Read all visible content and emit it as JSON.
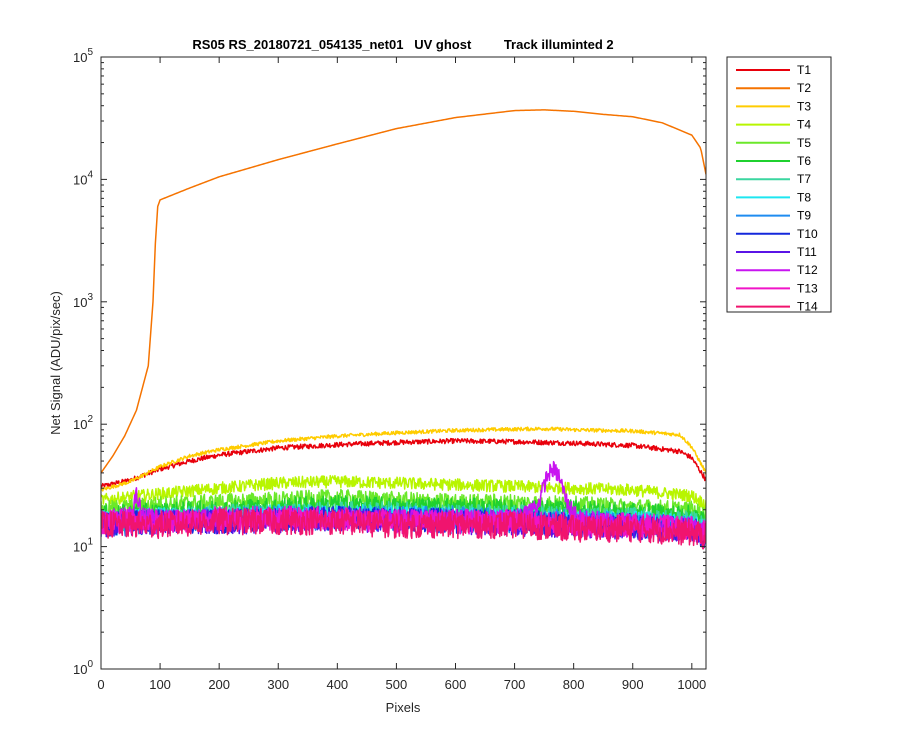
{
  "chart_data": {
    "type": "line",
    "title": "RS05 RS_20180721_054135_net01   UV ghost         Track illuminted 2",
    "xlabel": "Pixels",
    "ylabel": "Net Signal (ADU/pix/sec)",
    "xlim": [
      0,
      1024
    ],
    "ylim": [
      1,
      100000
    ],
    "yscale": "log",
    "grid": false,
    "legend_position": "outside-right",
    "x_ticks": [
      "0",
      "100",
      "200",
      "300",
      "400",
      "500",
      "600",
      "700",
      "800",
      "900",
      "1000"
    ],
    "y_ticks": [
      {
        "base": "10",
        "exp": "0"
      },
      {
        "base": "10",
        "exp": "1"
      },
      {
        "base": "10",
        "exp": "2"
      },
      {
        "base": "10",
        "exp": "3"
      },
      {
        "base": "10",
        "exp": "4"
      },
      {
        "base": "10",
        "exp": "5"
      }
    ],
    "series": [
      {
        "name": "T1",
        "color": "#e8000b",
        "x": [
          0,
          50,
          100,
          150,
          200,
          300,
          400,
          500,
          600,
          700,
          800,
          900,
          980,
          1000,
          1024
        ],
        "y": [
          31,
          35,
          43,
          50,
          56,
          64,
          68,
          71,
          73,
          72,
          70,
          67,
          60,
          53,
          35
        ],
        "noise": 0.02
      },
      {
        "name": "T2",
        "color": "#f57300",
        "x": [
          0,
          20,
          40,
          60,
          80,
          88,
          92,
          96,
          100,
          150,
          200,
          300,
          400,
          500,
          600,
          700,
          750,
          800,
          850,
          900,
          950,
          1000,
          1015,
          1024
        ],
        "y": [
          40,
          55,
          80,
          130,
          300,
          1000,
          3000,
          6000,
          6800,
          8500,
          10500,
          14500,
          19500,
          26000,
          32000,
          36500,
          37000,
          36000,
          34000,
          32500,
          29000,
          23000,
          18000,
          11000
        ],
        "noise": 0
      },
      {
        "name": "T3",
        "color": "#ffcc00",
        "x": [
          0,
          50,
          100,
          150,
          200,
          300,
          400,
          500,
          600,
          700,
          750,
          800,
          900,
          980,
          1000,
          1024
        ],
        "y": [
          29,
          34,
          45,
          55,
          62,
          73,
          80,
          85,
          89,
          91,
          92,
          90,
          88,
          82,
          65,
          40
        ],
        "noise": 0.015
      },
      {
        "name": "T4",
        "color": "#b8f500",
        "x": [
          0,
          100,
          200,
          300,
          400,
          500,
          600,
          700,
          800,
          900,
          1000,
          1024
        ],
        "y": [
          24,
          27,
          30,
          33,
          34,
          33,
          32,
          31,
          30,
          29,
          26,
          22
        ],
        "noise": 0.05
      },
      {
        "name": "T5",
        "color": "#6be82a",
        "x": [
          0,
          100,
          200,
          300,
          400,
          500,
          600,
          700,
          800,
          900,
          1000,
          1024
        ],
        "y": [
          20,
          22,
          23,
          24,
          25,
          24,
          23,
          23,
          22,
          21,
          20,
          18
        ],
        "noise": 0.07
      },
      {
        "name": "T6",
        "color": "#1fd12f",
        "x": [
          0,
          100,
          200,
          300,
          400,
          500,
          600,
          700,
          800,
          900,
          1000,
          1024
        ],
        "y": [
          18,
          19,
          20,
          21,
          22,
          21,
          21,
          20,
          20,
          19,
          18,
          16
        ],
        "noise": 0.08
      },
      {
        "name": "T7",
        "color": "#3ad6a0",
        "x": [
          0,
          100,
          200,
          300,
          400,
          500,
          600,
          700,
          800,
          900,
          1000,
          1024
        ],
        "y": [
          16,
          17,
          18,
          18,
          19,
          19,
          18,
          18,
          17,
          17,
          16,
          14
        ],
        "noise": 0.09
      },
      {
        "name": "T8",
        "color": "#1ee6f0",
        "x": [
          0,
          100,
          200,
          300,
          400,
          500,
          600,
          700,
          800,
          900,
          1000,
          1024
        ],
        "y": [
          16,
          17,
          17,
          18,
          18,
          18,
          17,
          17,
          16,
          16,
          15,
          13
        ],
        "noise": 0.09
      },
      {
        "name": "T9",
        "color": "#1f8cf0",
        "x": [
          0,
          100,
          200,
          300,
          400,
          500,
          600,
          700,
          800,
          900,
          1000,
          1024
        ],
        "y": [
          15,
          16,
          17,
          17,
          17,
          17,
          17,
          16,
          16,
          15,
          14,
          12
        ],
        "noise": 0.1
      },
      {
        "name": "T10",
        "color": "#1428dc",
        "x": [
          0,
          100,
          200,
          300,
          400,
          500,
          600,
          700,
          800,
          900,
          1000,
          1024
        ],
        "y": [
          15,
          16,
          16,
          17,
          17,
          17,
          16,
          16,
          15,
          15,
          14,
          12
        ],
        "noise": 0.1
      },
      {
        "name": "T11",
        "color": "#5a14e6",
        "x": [
          0,
          100,
          200,
          300,
          400,
          500,
          600,
          700,
          800,
          900,
          1000,
          1024
        ],
        "y": [
          15,
          16,
          16,
          16,
          17,
          16,
          16,
          15,
          15,
          14,
          14,
          12
        ],
        "noise": 0.1
      },
      {
        "name": "T12",
        "color": "#c814f0",
        "x": [
          0,
          50,
          60,
          70,
          100,
          200,
          300,
          400,
          500,
          600,
          700,
          740,
          755,
          765,
          775,
          790,
          810,
          900,
          1000,
          1024
        ],
        "y": [
          17,
          18,
          26,
          18,
          17,
          17,
          17,
          17,
          17,
          17,
          17,
          22,
          38,
          43,
          38,
          22,
          17,
          16,
          15,
          13
        ],
        "noise": 0.07
      },
      {
        "name": "T13",
        "color": "#f014c8",
        "x": [
          0,
          100,
          200,
          300,
          400,
          500,
          600,
          700,
          800,
          900,
          1000,
          1024
        ],
        "y": [
          16,
          16,
          17,
          17,
          17,
          16,
          16,
          16,
          15,
          15,
          14,
          13
        ],
        "noise": 0.1
      },
      {
        "name": "T14",
        "color": "#f0146e",
        "x": [
          0,
          100,
          200,
          300,
          400,
          500,
          600,
          700,
          800,
          900,
          1000,
          1024
        ],
        "y": [
          15,
          15,
          16,
          16,
          16,
          15,
          15,
          15,
          14,
          14,
          13,
          12
        ],
        "noise": 0.11
      }
    ]
  }
}
